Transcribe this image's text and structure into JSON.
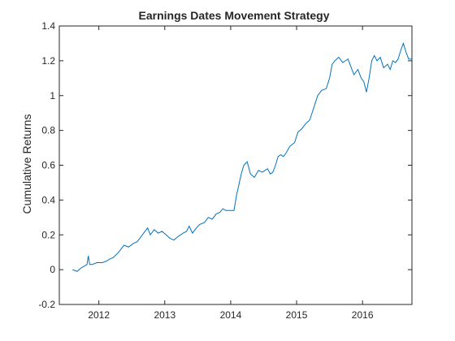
{
  "chart_data": {
    "type": "line",
    "title": "Earnings Dates Movement Strategy",
    "xlabel": "",
    "ylabel": "Cumulative Returns",
    "xlim": [
      2011.4,
      2016.75
    ],
    "ylim": [
      -0.2,
      1.4
    ],
    "x_ticks": [
      2012,
      2013,
      2014,
      2015,
      2016
    ],
    "x_tick_labels": [
      "2012",
      "2013",
      "2014",
      "2015",
      "2016"
    ],
    "y_ticks": [
      -0.2,
      0,
      0.2,
      0.4,
      0.6,
      0.8,
      1.0,
      1.2,
      1.4
    ],
    "y_tick_labels": [
      "-0.2",
      "0",
      "0.2",
      "0.4",
      "0.6",
      "0.8",
      "1",
      "1.2",
      "1.4"
    ],
    "grid": false,
    "series": [
      {
        "color": "#0072bd",
        "x": [
          2011.6,
          2011.67,
          2011.73,
          2011.78,
          2011.82,
          2011.84,
          2011.86,
          2011.9,
          2011.97,
          2012.05,
          2012.12,
          2012.16,
          2012.22,
          2012.3,
          2012.38,
          2012.45,
          2012.52,
          2012.58,
          2012.64,
          2012.7,
          2012.74,
          2012.78,
          2012.84,
          2012.9,
          2012.96,
          2013.02,
          2013.08,
          2013.14,
          2013.2,
          2013.28,
          2013.33,
          2013.37,
          2013.42,
          2013.48,
          2013.53,
          2013.6,
          2013.66,
          2013.72,
          2013.78,
          2013.84,
          2013.88,
          2013.93,
          2014.0,
          2014.05,
          2014.09,
          2014.12,
          2014.16,
          2014.2,
          2014.25,
          2014.3,
          2014.36,
          2014.42,
          2014.48,
          2014.52,
          2014.56,
          2014.6,
          2014.64,
          2014.68,
          2014.72,
          2014.76,
          2014.8,
          2014.84,
          2014.9,
          2014.97,
          2015.02,
          2015.08,
          2015.14,
          2015.2,
          2015.26,
          2015.32,
          2015.38,
          2015.45,
          2015.5,
          2015.54,
          2015.58,
          2015.64,
          2015.7,
          2015.74,
          2015.78,
          2015.82,
          2015.87,
          2015.93,
          2015.98,
          2016.02,
          2016.06,
          2016.1,
          2016.14,
          2016.18,
          2016.22,
          2016.27,
          2016.32,
          2016.38,
          2016.42,
          2016.46,
          2016.5,
          2016.54,
          2016.58,
          2016.62,
          2016.66,
          2016.7,
          2016.75
        ],
        "y": [
          0.0,
          -0.01,
          0.01,
          0.02,
          0.03,
          0.08,
          0.03,
          0.03,
          0.04,
          0.04,
          0.05,
          0.06,
          0.07,
          0.1,
          0.14,
          0.13,
          0.15,
          0.16,
          0.19,
          0.22,
          0.24,
          0.2,
          0.23,
          0.21,
          0.22,
          0.2,
          0.18,
          0.17,
          0.19,
          0.21,
          0.22,
          0.25,
          0.21,
          0.24,
          0.26,
          0.27,
          0.3,
          0.29,
          0.32,
          0.33,
          0.35,
          0.34,
          0.34,
          0.34,
          0.43,
          0.48,
          0.55,
          0.6,
          0.62,
          0.55,
          0.53,
          0.57,
          0.56,
          0.57,
          0.58,
          0.55,
          0.56,
          0.6,
          0.65,
          0.66,
          0.65,
          0.67,
          0.71,
          0.73,
          0.79,
          0.81,
          0.84,
          0.86,
          0.93,
          1.0,
          1.03,
          1.04,
          1.1,
          1.18,
          1.2,
          1.22,
          1.19,
          1.2,
          1.21,
          1.17,
          1.12,
          1.15,
          1.1,
          1.08,
          1.02,
          1.1,
          1.2,
          1.23,
          1.2,
          1.22,
          1.16,
          1.18,
          1.15,
          1.2,
          1.19,
          1.21,
          1.26,
          1.3,
          1.25,
          1.21,
          1.21
        ]
      }
    ]
  }
}
